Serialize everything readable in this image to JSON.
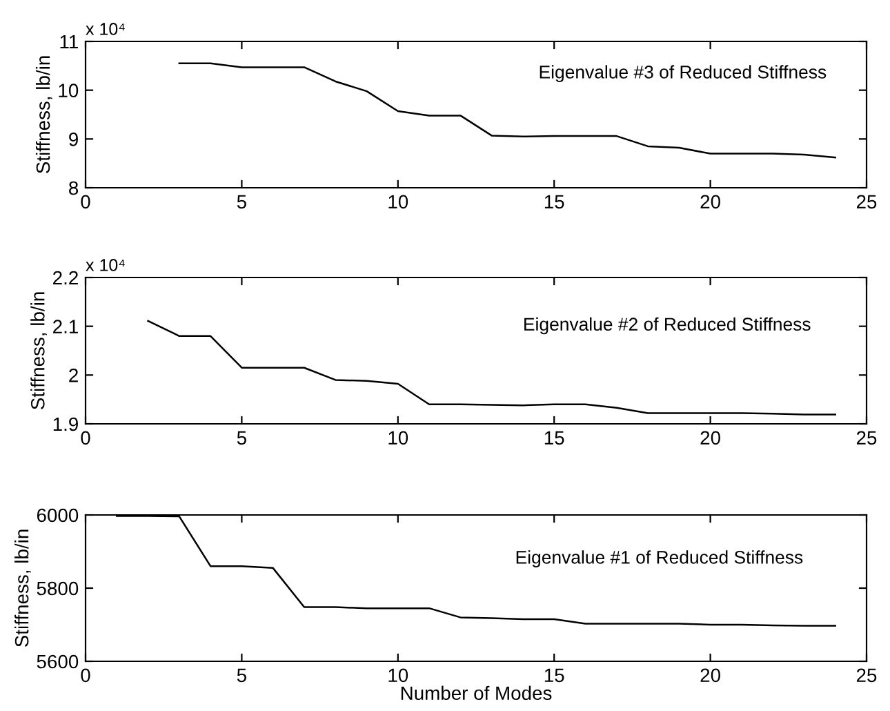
{
  "chart_data": [
    {
      "type": "line",
      "ylabel": "Stiffness, lb/in",
      "annotations": [
        "Eigenvalue #3 of Reduced Stiffness",
        "x 10⁴"
      ],
      "x": [
        3,
        4,
        5,
        6,
        7,
        8,
        9,
        10,
        11,
        12,
        13,
        14,
        15,
        16,
        17,
        18,
        19,
        20,
        21,
        22,
        23,
        24
      ],
      "series": [
        {
          "color": "#000000",
          "values": [
            10.55,
            10.55,
            10.47,
            10.47,
            10.47,
            10.18,
            9.98,
            9.57,
            9.48,
            9.48,
            9.07,
            9.05,
            9.06,
            9.06,
            9.06,
            8.85,
            8.82,
            8.7,
            8.7,
            8.7,
            8.68,
            8.62
          ]
        }
      ],
      "xlim": [
        0,
        25
      ],
      "xticks": [
        0,
        5,
        10,
        15,
        20,
        25
      ],
      "ylim": [
        8,
        11
      ],
      "yticks": [
        8,
        9,
        10,
        11
      ],
      "grid": false,
      "legend": false,
      "marker": "none",
      "line_style": "solid"
    },
    {
      "type": "line",
      "ylabel": "Stiffness, lb/in",
      "annotations": [
        "Eigenvalue #2 of Reduced Stiffness",
        "x 10⁴"
      ],
      "x": [
        2,
        3,
        4,
        5,
        6,
        7,
        8,
        9,
        10,
        11,
        12,
        13,
        14,
        15,
        16,
        17,
        18,
        19,
        20,
        21,
        22,
        23,
        24
      ],
      "series": [
        {
          "color": "#000000",
          "values": [
            2.111,
            2.08,
            2.08,
            2.015,
            2.015,
            2.015,
            1.99,
            1.988,
            1.982,
            1.94,
            1.94,
            1.939,
            1.938,
            1.94,
            1.94,
            1.933,
            1.922,
            1.922,
            1.922,
            1.922,
            1.921,
            1.919,
            1.919
          ]
        }
      ],
      "xlim": [
        0,
        25
      ],
      "xticks": [
        0,
        5,
        10,
        15,
        20,
        25
      ],
      "ylim": [
        1.9,
        2.2
      ],
      "yticks": [
        1.9,
        2,
        2.1,
        2.2
      ],
      "grid": false,
      "legend": false,
      "marker": "none",
      "line_style": "solid"
    },
    {
      "type": "line",
      "xlabel": "Number of Modes",
      "ylabel": "Stiffness, lb/in",
      "annotations": [
        "Eigenvalue #1 of Reduced Stiffness"
      ],
      "x": [
        1,
        2,
        3,
        4,
        5,
        6,
        7,
        8,
        9,
        10,
        11,
        12,
        13,
        14,
        15,
        16,
        17,
        18,
        19,
        20,
        21,
        22,
        23,
        24
      ],
      "series": [
        {
          "color": "#000000",
          "values": [
            5997,
            5997,
            5996,
            5860,
            5860,
            5855,
            5748,
            5748,
            5745,
            5745,
            5745,
            5720,
            5718,
            5715,
            5715,
            5703,
            5703,
            5703,
            5703,
            5700,
            5700,
            5698,
            5697,
            5697
          ]
        }
      ],
      "xlim": [
        0,
        25
      ],
      "xticks": [
        0,
        5,
        10,
        15,
        20,
        25
      ],
      "ylim": [
        5600,
        6000
      ],
      "yticks": [
        5600,
        5800,
        6000
      ],
      "grid": false,
      "legend": false,
      "marker": "none",
      "line_style": "solid"
    }
  ]
}
